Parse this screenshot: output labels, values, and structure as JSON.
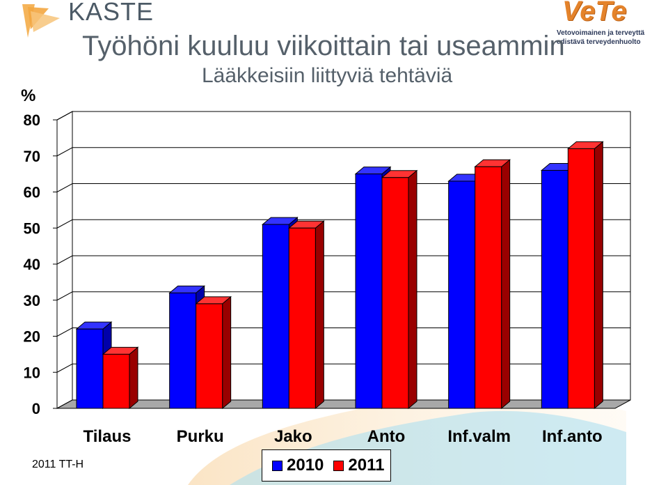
{
  "header": {
    "kaste_logo": "KASTE",
    "title": "Työhöni kuuluu viikoittain tai useammin",
    "subtitle": "Lääkkeisiin liittyviä tehtäviä",
    "vete_logo": "VeTe",
    "vete_tagline_1": "Vetovoimainen ja terveyttä",
    "vete_tagline_2": "edistävä terveydenhuolto"
  },
  "footer": {
    "label": "2011 TT-H"
  },
  "colors": {
    "blue": "#0000ff",
    "red": "#ff0000",
    "swoosh": "#f5b45a",
    "floor": "#a8a8a8"
  },
  "chart_data": {
    "type": "bar",
    "title": "Työhöni kuuluu viikoittain tai useammin",
    "subtitle": "Lääkkeisiin liittyviä tehtäviä",
    "ylabel": "%",
    "xlabel": "",
    "ylim": [
      0,
      80
    ],
    "yticks": [
      0,
      10,
      20,
      30,
      40,
      50,
      60,
      70,
      80
    ],
    "grid": true,
    "legend": "bottom",
    "categories": [
      "Tilaus",
      "Purku",
      "Jako",
      "Anto",
      "Inf.valm",
      "Inf.anto"
    ],
    "series": [
      {
        "name": "2010",
        "color": "#0000ff",
        "values": [
          22,
          32,
          51,
          65,
          63,
          66
        ]
      },
      {
        "name": "2011",
        "color": "#ff0000",
        "values": [
          15,
          29,
          50,
          64,
          67,
          72
        ]
      }
    ]
  }
}
